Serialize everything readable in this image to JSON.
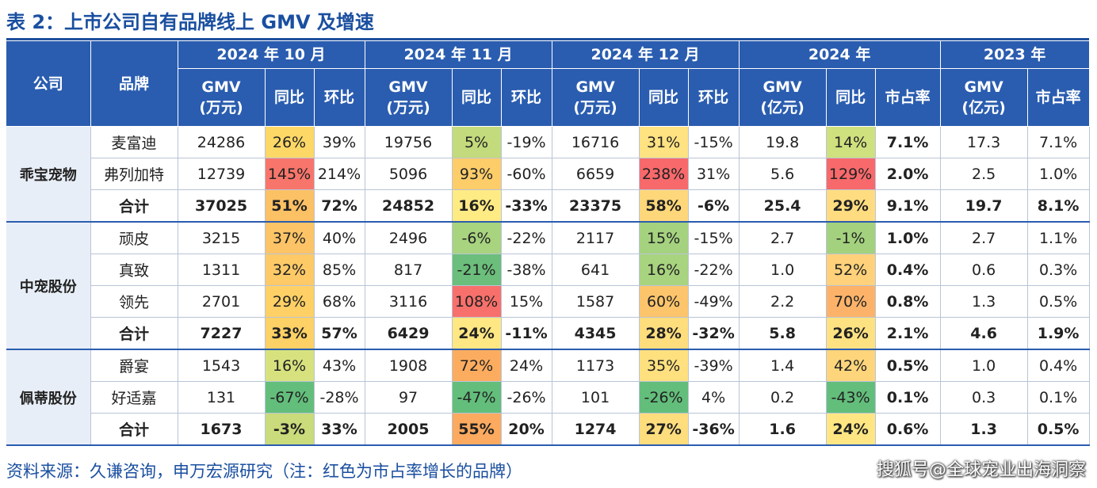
{
  "title": "表 2：上市公司自有品牌线上 GMV 及增速",
  "header": {
    "company": "公司",
    "brand": "品牌",
    "periods": [
      "2024 年 10 月",
      "2024 年 11 月",
      "2024 年 12 月",
      "2024 年",
      "2023 年"
    ],
    "gmv_wan_l1": "GMV",
    "gmv_wan_l2": "(万元)",
    "gmv_yi_l1": "GMV",
    "gmv_yi_l2": "(亿元)",
    "yoy": "同比",
    "mom": "环比",
    "share": "市占率"
  },
  "colors": {
    "header_bg": "#2a5db0",
    "title": "#1a4fa0",
    "highlight_red": "#d92020"
  },
  "rows": [
    {
      "company": "乖宝宠物",
      "brand": "麦富迪",
      "oct_gmv": "24286",
      "oct_yoy": "26%",
      "oct_mom": "39%",
      "nov_gmv": "19756",
      "nov_yoy": "5%",
      "nov_mom": "-19%",
      "dec_gmv": "16716",
      "dec_yoy": "31%",
      "dec_mom": "-15%",
      "y24_gmv": "19.8",
      "y24_yoy": "14%",
      "y24_share": "7.1%",
      "y23_gmv": "17.3",
      "y23_share": "7.1%"
    },
    {
      "company": "",
      "brand": "弗列加特",
      "oct_gmv": "12739",
      "oct_yoy": "145%",
      "oct_mom": "214%",
      "nov_gmv": "5096",
      "nov_yoy": "93%",
      "nov_mom": "-60%",
      "dec_gmv": "6659",
      "dec_yoy": "238%",
      "dec_mom": "31%",
      "y24_gmv": "5.6",
      "y24_yoy": "129%",
      "y24_share": "2.0%",
      "y23_gmv": "2.5",
      "y23_share": "1.0%"
    },
    {
      "company": "",
      "brand": "合计",
      "oct_gmv": "37025",
      "oct_yoy": "51%",
      "oct_mom": "72%",
      "nov_gmv": "24852",
      "nov_yoy": "16%",
      "nov_mom": "-33%",
      "dec_gmv": "23375",
      "dec_yoy": "58%",
      "dec_mom": "-6%",
      "y24_gmv": "25.4",
      "y24_yoy": "29%",
      "y24_share": "9.1%",
      "y23_gmv": "19.7",
      "y23_share": "8.1%"
    },
    {
      "company": "中宠股份",
      "brand": "顽皮",
      "oct_gmv": "3215",
      "oct_yoy": "37%",
      "oct_mom": "40%",
      "nov_gmv": "2496",
      "nov_yoy": "-6%",
      "nov_mom": "-22%",
      "dec_gmv": "2117",
      "dec_yoy": "15%",
      "dec_mom": "-15%",
      "y24_gmv": "2.7",
      "y24_yoy": "-1%",
      "y24_share": "1.0%",
      "y23_gmv": "2.7",
      "y23_share": "1.1%"
    },
    {
      "company": "",
      "brand": "真致",
      "oct_gmv": "1311",
      "oct_yoy": "32%",
      "oct_mom": "85%",
      "nov_gmv": "817",
      "nov_yoy": "-21%",
      "nov_mom": "-38%",
      "dec_gmv": "641",
      "dec_yoy": "16%",
      "dec_mom": "-22%",
      "y24_gmv": "1.0",
      "y24_yoy": "52%",
      "y24_share": "0.4%",
      "y23_gmv": "0.6",
      "y23_share": "0.3%"
    },
    {
      "company": "",
      "brand": "领先",
      "oct_gmv": "2701",
      "oct_yoy": "29%",
      "oct_mom": "68%",
      "nov_gmv": "3116",
      "nov_yoy": "108%",
      "nov_mom": "15%",
      "dec_gmv": "1587",
      "dec_yoy": "60%",
      "dec_mom": "-49%",
      "y24_gmv": "2.2",
      "y24_yoy": "70%",
      "y24_share": "0.8%",
      "y23_gmv": "1.3",
      "y23_share": "0.5%"
    },
    {
      "company": "",
      "brand": "合计",
      "oct_gmv": "7227",
      "oct_yoy": "33%",
      "oct_mom": "57%",
      "nov_gmv": "6429",
      "nov_yoy": "24%",
      "nov_mom": "-11%",
      "dec_gmv": "4345",
      "dec_yoy": "28%",
      "dec_mom": "-32%",
      "y24_gmv": "5.8",
      "y24_yoy": "26%",
      "y24_share": "2.1%",
      "y23_gmv": "4.6",
      "y23_share": "1.9%"
    },
    {
      "company": "佩蒂股份",
      "brand": "爵宴",
      "oct_gmv": "1543",
      "oct_yoy": "16%",
      "oct_mom": "43%",
      "nov_gmv": "1908",
      "nov_yoy": "72%",
      "nov_mom": "24%",
      "dec_gmv": "1173",
      "dec_yoy": "35%",
      "dec_mom": "-39%",
      "y24_gmv": "1.4",
      "y24_yoy": "42%",
      "y24_share": "0.5%",
      "y23_gmv": "1.0",
      "y23_share": "0.4%"
    },
    {
      "company": "",
      "brand": "好适嘉",
      "oct_gmv": "131",
      "oct_yoy": "-67%",
      "oct_mom": "-28%",
      "nov_gmv": "97",
      "nov_yoy": "-47%",
      "nov_mom": "-26%",
      "dec_gmv": "101",
      "dec_yoy": "-26%",
      "dec_mom": "4%",
      "y24_gmv": "0.2",
      "y24_yoy": "-43%",
      "y24_share": "0.1%",
      "y23_gmv": "0.3",
      "y23_share": "0.1%"
    },
    {
      "company": "",
      "brand": "合计",
      "oct_gmv": "1673",
      "oct_yoy": "-3%",
      "oct_mom": "33%",
      "nov_gmv": "2005",
      "nov_yoy": "55%",
      "nov_mom": "20%",
      "dec_gmv": "1274",
      "dec_yoy": "27%",
      "dec_mom": "-36%",
      "y24_gmv": "1.6",
      "y24_yoy": "24%",
      "y24_share": "0.6%",
      "y23_gmv": "1.3",
      "y23_share": "0.5%"
    }
  ],
  "heat_colors": {
    "oct_yoy": [
      "#fed866",
      "#f8756b",
      "#fcc065",
      "#fcc466",
      "#fdca67",
      "#fed065",
      "#fdd166",
      "#d7e27f",
      "#63be7b",
      "#c9db7a"
    ],
    "nov_yoy": [
      "#c3db7c",
      "#fdcd6a",
      "#ffeb84",
      "#a8d37f",
      "#6bbe7b",
      "#f8706b",
      "#ffe783",
      "#fcac5f",
      "#63be7b",
      "#fcaa5f"
    ],
    "dec_yoy": [
      "#ffe281",
      "#f8696b",
      "#fed77a",
      "#a5d27f",
      "#a8d37f",
      "#fcc56b",
      "#fedd7d",
      "#fee07f",
      "#63be7b",
      "#fedd7d"
    ],
    "y24_yoy": [
      "#cfe07f",
      "#f8696b",
      "#fedc7f",
      "#a3d17e",
      "#fed17a",
      "#fcb369",
      "#fee282",
      "#fed57b",
      "#63be7b",
      "#ffe683"
    ]
  },
  "red_share_rows": [
    0,
    1,
    2,
    4,
    5,
    6,
    7,
    9
  ],
  "footer": "资料来源：久谦咨询，申万宏源研究（注：红色为市占率增长的品牌）",
  "watermark": "搜狐号@全球宠业出海洞察"
}
